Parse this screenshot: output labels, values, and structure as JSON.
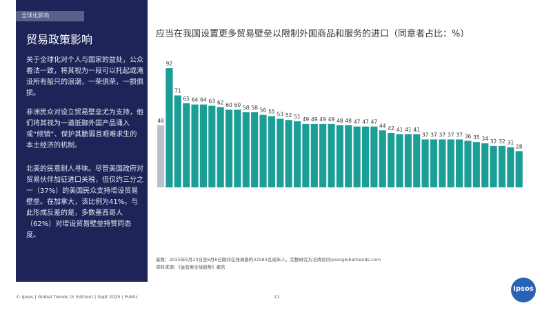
{
  "tag": "全球化影响",
  "sidebar": {
    "title": "贸易政策影响",
    "p1": "关于全球化对个人与国家的益处，公众看法一致，将其视为一段可以托起或淹没所有船只的浪潮，一荣俱荣，一损俱损。",
    "p2": "非洲民众对设立贸易壁垒尤为支持，他们将其视为一道抵御外国产品涌入或“倾销”、保护其脆弱且艰难求生的本土经济的机制。",
    "p3": "北美的民意耐人寻味。尽管美国政府对贸易伙伴加征进口关税，但仅约三分之一（37%）的美国民众支持增设贸易壁垒。在加拿大，该比例为41%。与此形成反差的是，多数墨西哥人（62%）对增设贸易壁垒持赞同态度。"
  },
  "notes": {
    "line1": "基数：2025年5月23日至6月6日期间在线调查的32583名成年人。完整研究方法请访问ipsosglobaltrends.com",
    "line2": "资料来源：《益普索全球趋势》报告"
  },
  "footer": {
    "left": "© Ipsos | Global Trends (Ir Edition) | Sept 2025 | Public",
    "page": "11"
  },
  "logo": "Ipsos",
  "colors": {
    "bar": "#1a9e96",
    "highlight": "#b8c2cc",
    "sidebar": "#1e2458"
  },
  "chart_data": {
    "type": "bar",
    "title": "应当在我国设置更多贸易壁垒以限制外国商品和服务的进口（同意者占比：%）",
    "values": [
      48,
      92,
      71,
      65,
      64,
      64,
      63,
      62,
      60,
      60,
      58,
      58,
      56,
      55,
      53,
      52,
      51,
      49,
      49,
      49,
      49,
      48,
      48,
      47,
      47,
      47,
      44,
      42,
      41,
      41,
      41,
      37,
      37,
      37,
      37,
      37,
      36,
      35,
      34,
      32,
      32,
      31,
      28
    ],
    "highlight_index": 0,
    "ylim": [
      0,
      100
    ],
    "grid": false
  }
}
